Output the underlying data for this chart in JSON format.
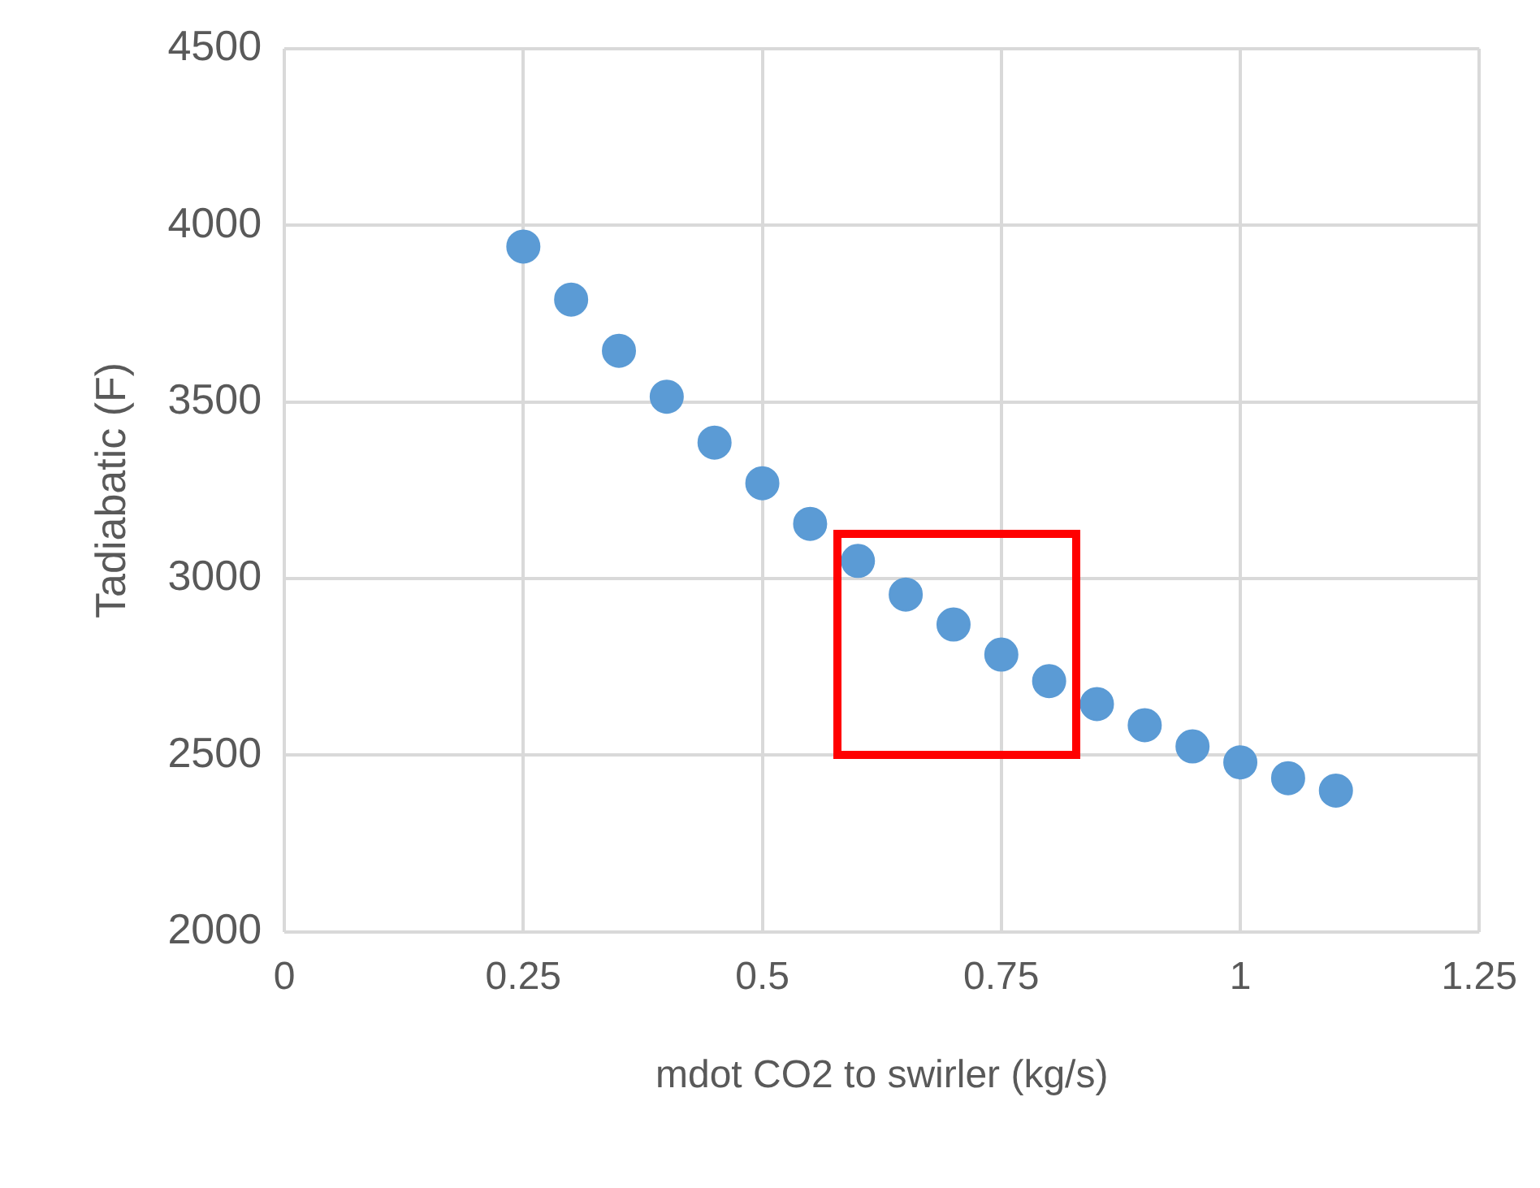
{
  "chart_data": {
    "type": "scatter",
    "xlabel": "mdot CO2 to swirler (kg/s)",
    "ylabel": "Tadiabatic (F)",
    "x": [
      0.25,
      0.3,
      0.35,
      0.4,
      0.45,
      0.5,
      0.55,
      0.6,
      0.65,
      0.7,
      0.75,
      0.8,
      0.85,
      0.9,
      0.95,
      1.0,
      1.05,
      1.1
    ],
    "series": [
      {
        "color": "#5b9bd5",
        "values": [
          3940,
          3790,
          3645,
          3515,
          3385,
          3270,
          3155,
          3050,
          2955,
          2870,
          2785,
          2710,
          2645,
          2585,
          2525,
          2480,
          2435,
          2400
        ]
      }
    ],
    "xlim": [
      0,
      1.25
    ],
    "xticks": [
      0,
      0.25,
      0.5,
      0.75,
      1,
      1.25
    ],
    "ylim": [
      2000,
      4500
    ],
    "yticks": [
      2000,
      2500,
      3000,
      3500,
      4000,
      4500
    ],
    "grid": true,
    "legend": false,
    "marker": "circle"
  }
}
